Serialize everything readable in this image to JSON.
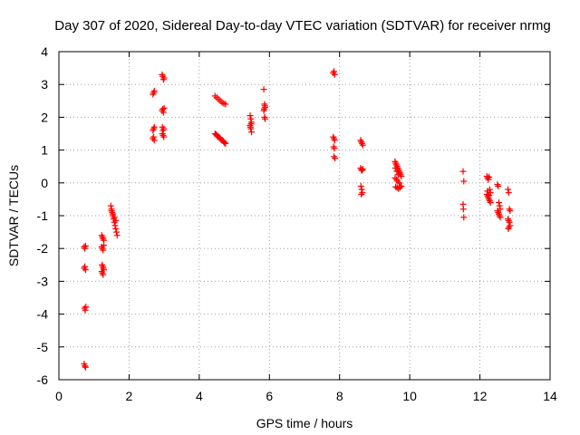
{
  "chart_data": {
    "type": "scatter",
    "title": "Day 307 of 2020, Sidereal Day-to-day VTEC variation (SDTVAR) for receiver nrmg",
    "xlabel": "GPS time / hours",
    "ylabel": "SDTVAR / TECUs",
    "xlim": [
      0,
      14
    ],
    "ylim": [
      -6,
      4
    ],
    "x_ticks": [
      "0",
      "2",
      "4",
      "6",
      "8",
      "10",
      "12",
      "14"
    ],
    "y_ticks": [
      "-6",
      "-5",
      "-4",
      "-3",
      "-2",
      "-1",
      "0",
      "1",
      "2",
      "3",
      "4"
    ],
    "grid": true,
    "series": [
      {
        "name": "SDTVAR",
        "color": "#ff0000",
        "marker": "plus",
        "x": [
          0.72,
          0.74,
          0.76,
          0.72,
          0.74,
          0.76,
          0.73,
          0.75,
          0.77,
          0.72,
          0.74,
          0.76,
          1.22,
          1.24,
          1.26,
          1.28,
          1.22,
          1.24,
          1.26,
          1.28,
          1.23,
          1.25,
          1.27,
          1.22,
          1.24,
          1.26,
          1.28,
          1.48,
          1.5,
          1.52,
          1.54,
          1.56,
          1.58,
          1.6,
          1.62,
          1.64,
          1.66,
          1.5,
          1.54,
          1.58,
          1.62,
          2.68,
          2.7,
          2.72,
          2.68,
          2.7,
          2.72,
          2.68,
          2.7,
          2.72,
          2.94,
          2.96,
          2.98,
          3.0,
          2.94,
          2.96,
          2.98,
          3.0,
          2.95,
          2.97,
          2.99,
          2.95,
          2.97,
          2.99,
          4.45,
          4.5,
          4.55,
          4.6,
          4.65,
          4.7,
          4.75,
          4.45,
          4.5,
          4.55,
          4.6,
          4.65,
          4.7,
          4.75,
          4.48,
          4.52,
          4.58,
          4.62,
          4.68,
          4.72,
          5.45,
          5.47,
          5.49,
          5.45,
          5.47,
          5.49,
          5.46,
          5.48,
          5.84,
          5.86,
          5.88,
          5.84,
          5.86,
          5.88,
          5.85,
          5.87,
          7.82,
          7.84,
          7.86,
          7.82,
          7.84,
          7.86,
          7.83,
          7.85,
          7.87,
          7.84,
          8.6,
          8.62,
          8.64,
          8.66,
          8.6,
          8.62,
          8.64,
          8.66,
          8.61,
          8.63,
          8.65,
          8.62,
          9.58,
          9.6,
          9.62,
          9.64,
          9.66,
          9.68,
          9.7,
          9.72,
          9.74,
          9.76,
          9.58,
          9.62,
          9.66,
          9.7,
          9.74,
          9.6,
          9.64,
          9.68,
          9.72,
          9.76,
          9.59,
          9.63,
          9.67,
          9.71,
          11.52,
          11.54,
          11.52,
          11.54,
          11.53,
          12.2,
          12.22,
          12.24,
          12.26,
          12.28,
          12.3,
          12.2,
          12.22,
          12.24,
          12.26,
          12.28,
          12.3,
          12.22,
          12.26,
          12.5,
          12.52,
          12.54,
          12.56,
          12.58,
          12.5,
          12.52,
          12.54,
          12.56,
          12.58,
          12.8,
          12.82,
          12.84,
          12.86,
          12.8,
          12.82,
          12.84,
          12.86,
          12.81,
          12.83
        ],
        "y": [
          -1.95,
          -2.0,
          -1.92,
          -2.6,
          -2.55,
          -2.65,
          -3.82,
          -3.88,
          -3.78,
          -5.52,
          -5.58,
          -5.62,
          -1.6,
          -1.65,
          -1.7,
          -1.75,
          -1.95,
          -2.0,
          -2.05,
          -1.9,
          -2.5,
          -2.55,
          -2.6,
          -2.7,
          -2.75,
          -2.8,
          -2.65,
          -0.7,
          -0.8,
          -0.9,
          -1.0,
          -1.1,
          -1.2,
          -1.3,
          -1.4,
          -1.5,
          -1.6,
          -0.85,
          -0.95,
          -1.05,
          -1.15,
          2.7,
          2.75,
          2.8,
          1.6,
          1.65,
          1.7,
          1.35,
          1.4,
          1.3,
          3.3,
          3.25,
          3.15,
          3.2,
          2.2,
          2.25,
          2.15,
          2.28,
          1.7,
          1.6,
          1.65,
          1.5,
          1.45,
          1.4,
          2.65,
          2.6,
          2.55,
          2.5,
          2.45,
          2.42,
          2.4,
          1.5,
          1.45,
          1.4,
          1.35,
          1.3,
          1.25,
          1.2,
          1.48,
          1.42,
          1.38,
          1.32,
          1.28,
          1.22,
          2.05,
          1.95,
          1.85,
          1.75,
          1.65,
          1.55,
          1.7,
          1.8,
          2.85,
          2.4,
          2.3,
          2.2,
          2.0,
          1.95,
          2.25,
          2.35,
          3.35,
          3.4,
          3.3,
          1.4,
          1.35,
          1.3,
          1.1,
          1.05,
          0.75,
          0.8,
          1.3,
          1.25,
          1.2,
          1.15,
          0.45,
          0.4,
          0.38,
          0.42,
          -0.1,
          -0.2,
          -0.3,
          -0.35,
          0.65,
          0.6,
          0.55,
          0.5,
          0.45,
          0.4,
          0.35,
          0.3,
          0.25,
          0.2,
          0.15,
          0.1,
          0.05,
          0.0,
          -0.1,
          -0.12,
          -0.15,
          -0.18,
          -0.14,
          -0.1,
          0.45,
          0.35,
          0.25,
          0.3,
          0.35,
          0.05,
          -0.65,
          -1.05,
          -0.8,
          0.2,
          0.15,
          0.1,
          0.18,
          -0.2,
          -0.3,
          -0.35,
          -0.4,
          -0.45,
          -0.5,
          -0.55,
          -0.6,
          -0.25,
          -0.38,
          -0.05,
          -0.1,
          -0.6,
          -0.7,
          -0.8,
          -0.85,
          -0.9,
          -0.95,
          -1.0,
          -1.05,
          -0.2,
          -0.3,
          -0.8,
          -0.85,
          -1.1,
          -1.15,
          -1.2,
          -1.3,
          -1.4,
          -1.35
        ]
      }
    ]
  }
}
